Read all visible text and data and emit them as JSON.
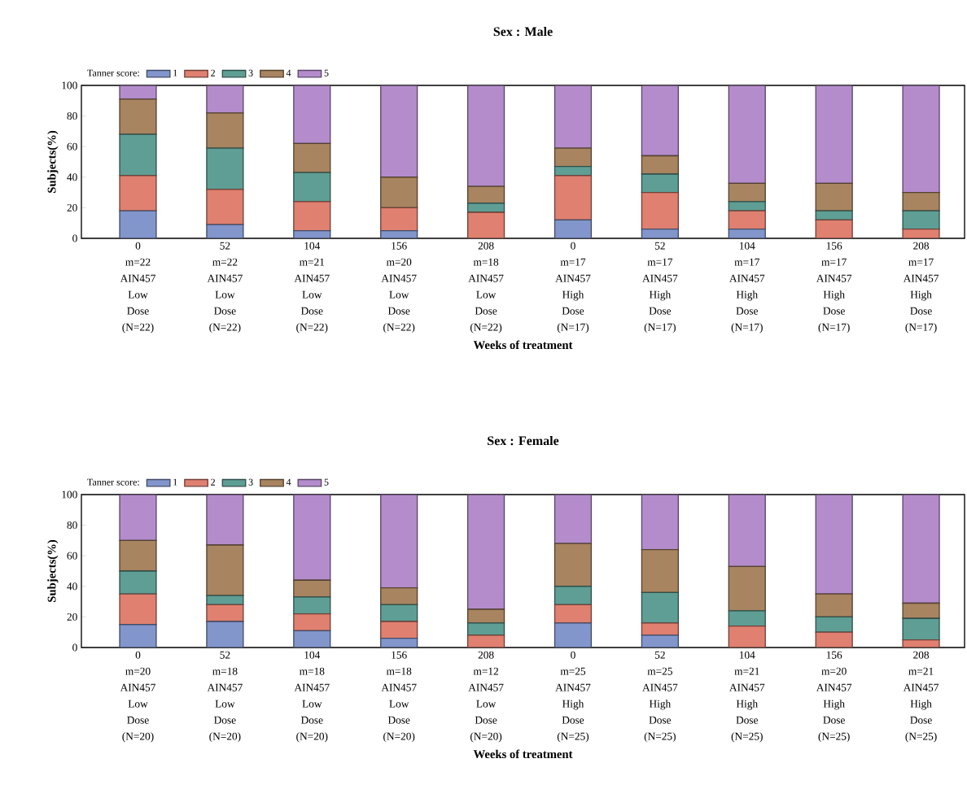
{
  "chart_data": [
    {
      "type": "bar",
      "stacked": true,
      "title": "Sex : Male",
      "legend_title": "Tanner score:",
      "xlabel": "Weeks of treatment",
      "ylabel": "Subjects(%)",
      "ylim": [
        0,
        100
      ],
      "yticks": [
        0,
        20,
        40,
        60,
        80,
        100
      ],
      "legend": "top left",
      "categories": [
        "0 m=22 AIN457 Low Dose (N=22)",
        "52 m=22 AIN457 Low Dose (N=22)",
        "104 m=21 AIN457 Low Dose (N=22)",
        "156 m=20 AIN457 Low Dose (N=22)",
        "208 m=18 AIN457 Low Dose (N=22)",
        "0 m=17 AIN457 High Dose (N=17)",
        "52 m=17 AIN457 High Dose (N=17)",
        "104 m=17 AIN457 High Dose (N=17)",
        "156 m=17 AIN457 High Dose (N=17)",
        "208 m=17 AIN457 High Dose (N=17)"
      ],
      "series": [
        {
          "name": "1",
          "color": "#8296cc",
          "values": [
            18,
            9,
            5,
            5,
            0,
            12,
            6,
            6,
            0,
            0
          ]
        },
        {
          "name": "2",
          "color": "#e08070",
          "values": [
            23,
            23,
            19,
            15,
            17,
            29,
            24,
            12,
            12,
            6
          ]
        },
        {
          "name": "3",
          "color": "#5f9e94",
          "values": [
            27,
            27,
            19,
            0,
            6,
            6,
            12,
            6,
            6,
            12
          ]
        },
        {
          "name": "4",
          "color": "#a88460",
          "values": [
            23,
            23,
            19,
            20,
            11,
            12,
            12,
            12,
            18,
            12
          ]
        },
        {
          "name": "5",
          "color": "#b48ccc",
          "values": [
            9,
            18,
            38,
            60,
            66,
            41,
            46,
            64,
            64,
            70
          ]
        }
      ]
    },
    {
      "type": "bar",
      "stacked": true,
      "title": "Sex : Female",
      "legend_title": "Tanner score:",
      "xlabel": "Weeks of treatment",
      "ylabel": "Subjects(%)",
      "ylim": [
        0,
        100
      ],
      "yticks": [
        0,
        20,
        40,
        60,
        80,
        100
      ],
      "legend": "top left",
      "categories": [
        "0 m=20 AIN457 Low Dose (N=20)",
        "52 m=18 AIN457 Low Dose (N=20)",
        "104 m=18 AIN457 Low Dose (N=20)",
        "156 m=18 AIN457 Low Dose (N=20)",
        "208 m=12 AIN457 Low Dose (N=20)",
        "0 m=25 AIN457 High Dose (N=25)",
        "52 m=25 AIN457 High Dose (N=25)",
        "104 m=21 AIN457 High Dose (N=25)",
        "156 m=20 AIN457 High Dose (N=25)",
        "208 m=21 AIN457 High Dose (N=25)"
      ],
      "series": [
        {
          "name": "1",
          "color": "#8296cc",
          "values": [
            15,
            17,
            11,
            6,
            0,
            16,
            8,
            0,
            0,
            0
          ]
        },
        {
          "name": "2",
          "color": "#e08070",
          "values": [
            20,
            11,
            11,
            11,
            8,
            12,
            8,
            14,
            10,
            5
          ]
        },
        {
          "name": "3",
          "color": "#5f9e94",
          "values": [
            15,
            6,
            11,
            11,
            8,
            12,
            20,
            10,
            10,
            14
          ]
        },
        {
          "name": "4",
          "color": "#a88460",
          "values": [
            20,
            33,
            11,
            11,
            9,
            28,
            28,
            29,
            15,
            10
          ]
        },
        {
          "name": "5",
          "color": "#b48ccc",
          "values": [
            30,
            33,
            56,
            61,
            75,
            32,
            36,
            47,
            65,
            71
          ]
        }
      ]
    }
  ]
}
